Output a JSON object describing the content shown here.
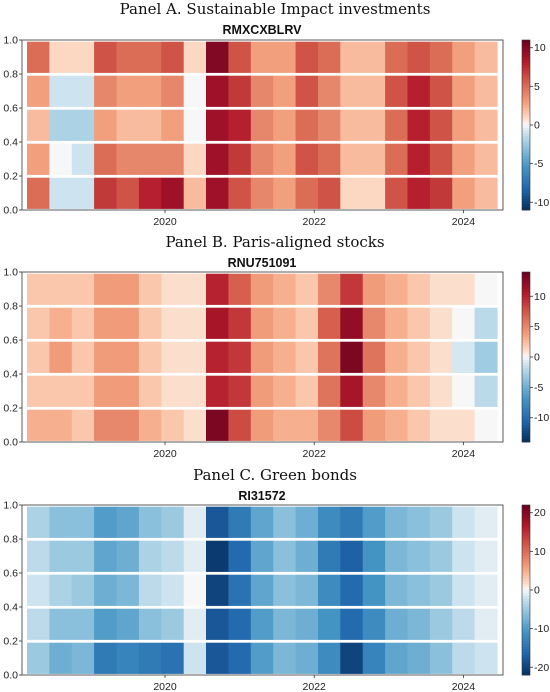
{
  "chart_data": [
    {
      "type": "heatmap",
      "panel_title": "Panel A. Sustainable Impact investments",
      "title": "RMXCXBLRV",
      "x_ticks": [
        "2020",
        "2022",
        "2024"
      ],
      "y_ticks": [
        "0.0",
        "0.2",
        "0.4",
        "0.6",
        "0.8",
        "1.0"
      ],
      "ylim": [
        0,
        1
      ],
      "colorbar_ticks": [
        "10",
        "5",
        "0",
        "-5",
        "-10"
      ],
      "colorbar_range": [
        -11,
        11
      ],
      "grid": false,
      "cmap": "red-white-blue",
      "x": [
        2018.3,
        2018.6,
        2018.9,
        2019.2,
        2019.5,
        2019.8,
        2020.1,
        2020.4,
        2020.7,
        2021.0,
        2021.3,
        2021.6,
        2021.9,
        2022.2,
        2022.5,
        2022.8,
        2023.1,
        2023.4,
        2023.7,
        2024.0,
        2024.3
      ],
      "y": [
        0.1,
        0.3,
        0.5,
        0.7,
        0.9
      ],
      "z": [
        [
          5,
          -1,
          -1,
          7,
          6,
          8,
          9,
          2,
          9,
          6,
          4,
          3,
          5,
          6,
          1,
          1,
          6,
          8,
          7,
          3,
          2
        ],
        [
          3,
          0,
          -1,
          5,
          4,
          4,
          4,
          1,
          9,
          7,
          4,
          3,
          6,
          5,
          2,
          2,
          5,
          8,
          6,
          3,
          2
        ],
        [
          2,
          -2,
          -2,
          3,
          2,
          2,
          3,
          0,
          9,
          8,
          4,
          3,
          5,
          4,
          2,
          2,
          5,
          8,
          6,
          3,
          2
        ],
        [
          3,
          -1,
          -1,
          4,
          3,
          3,
          4,
          0,
          9,
          7,
          4,
          3,
          6,
          4,
          2,
          2,
          6,
          8,
          6,
          3,
          2
        ],
        [
          5,
          1,
          1,
          6,
          5,
          5,
          6,
          1,
          10,
          6,
          3,
          3,
          6,
          5,
          2,
          2,
          5,
          6,
          5,
          3,
          2
        ]
      ]
    },
    {
      "type": "heatmap",
      "panel_title": "Panel B. Paris-aligned stocks",
      "title": "RNU751091",
      "x_ticks": [
        "2020",
        "2022",
        "2024"
      ],
      "y_ticks": [
        "0.0",
        "0.2",
        "0.4",
        "0.6",
        "0.8",
        "1.0"
      ],
      "ylim": [
        0,
        1
      ],
      "colorbar_ticks": [
        "10",
        "5",
        "0",
        "-5",
        "-10"
      ],
      "colorbar_range": [
        -14,
        14
      ],
      "grid": false,
      "cmap": "red-white-blue",
      "x": [
        2018.3,
        2018.6,
        2018.9,
        2019.2,
        2019.5,
        2019.8,
        2020.1,
        2020.4,
        2020.7,
        2021.0,
        2021.3,
        2021.6,
        2021.9,
        2022.2,
        2022.5,
        2022.8,
        2023.1,
        2023.4,
        2023.7,
        2024.0,
        2024.3
      ],
      "y": [
        0.1,
        0.3,
        0.5,
        0.7,
        0.9
      ],
      "z": [
        [
          3,
          3,
          2,
          5,
          5,
          3,
          2,
          1,
          13,
          8,
          4,
          3,
          3,
          5,
          8,
          4,
          3,
          2,
          1,
          1,
          0
        ],
        [
          2,
          2,
          2,
          4,
          4,
          2,
          1,
          1,
          10,
          9,
          4,
          3,
          2,
          6,
          11,
          5,
          3,
          2,
          1,
          0,
          -2
        ],
        [
          2,
          4,
          2,
          4,
          4,
          2,
          1,
          1,
          10,
          9,
          4,
          3,
          2,
          6,
          13,
          6,
          3,
          2,
          1,
          -1,
          -3
        ],
        [
          2,
          3,
          2,
          4,
          4,
          2,
          1,
          1,
          11,
          9,
          4,
          3,
          2,
          7,
          12,
          5,
          3,
          2,
          1,
          0,
          -2
        ],
        [
          2,
          2,
          2,
          4,
          4,
          2,
          1,
          1,
          10,
          7,
          4,
          3,
          2,
          5,
          9,
          4,
          3,
          2,
          1,
          1,
          0
        ]
      ]
    },
    {
      "type": "heatmap",
      "panel_title": "Panel C. Green bonds",
      "title": "RI31572",
      "x_ticks": [
        "2020",
        "2022",
        "2024"
      ],
      "y_ticks": [
        "0.0",
        "0.2",
        "0.4",
        "0.6",
        "0.8",
        "1.0"
      ],
      "ylim": [
        0,
        1
      ],
      "colorbar_ticks": [
        "20",
        "10",
        "0",
        "-10",
        "-20"
      ],
      "colorbar_range": [
        -22,
        22
      ],
      "grid": false,
      "cmap": "red-white-blue",
      "x": [
        2018.3,
        2018.6,
        2018.9,
        2019.2,
        2019.5,
        2019.8,
        2020.1,
        2020.4,
        2020.7,
        2021.0,
        2021.3,
        2021.6,
        2021.9,
        2022.2,
        2022.5,
        2022.8,
        2023.1,
        2023.4,
        2023.7,
        2024.0,
        2024.3
      ],
      "y": [
        0.1,
        0.3,
        0.5,
        0.7,
        0.9
      ],
      "z": [
        [
          -5,
          -8,
          -7,
          -14,
          -13,
          -14,
          -15,
          -2,
          -18,
          -16,
          -10,
          -7,
          -8,
          -12,
          -20,
          -13,
          -9,
          -8,
          -6,
          -3,
          -2
        ],
        [
          -3,
          -6,
          -6,
          -10,
          -9,
          -6,
          -5,
          -1,
          -18,
          -16,
          -10,
          -7,
          -8,
          -11,
          -16,
          -12,
          -8,
          -7,
          -5,
          -3,
          -1
        ],
        [
          -2,
          -4,
          -5,
          -8,
          -7,
          -3,
          -2,
          0,
          -20,
          -15,
          -9,
          -6,
          -7,
          -12,
          -16,
          -11,
          -7,
          -6,
          -5,
          -2,
          -1
        ],
        [
          -3,
          -5,
          -5,
          -9,
          -8,
          -4,
          -3,
          -1,
          -21,
          -16,
          -9,
          -6,
          -8,
          -14,
          -17,
          -11,
          -7,
          -6,
          -5,
          -2,
          -1
        ],
        [
          -4,
          -6,
          -6,
          -10,
          -9,
          -6,
          -5,
          -1,
          -18,
          -14,
          -9,
          -6,
          -8,
          -12,
          -14,
          -10,
          -7,
          -6,
          -5,
          -2,
          -1
        ]
      ]
    }
  ]
}
